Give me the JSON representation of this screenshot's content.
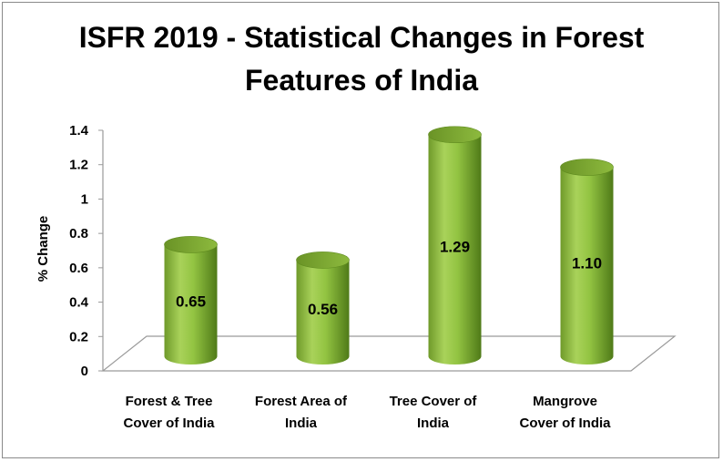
{
  "chart_data": {
    "type": "bar",
    "title": "ISFR 2019 - Statistical Changes in Forest Features of India",
    "title_lines": [
      "ISFR 2019 - Statistical Changes in Forest",
      "Features of India"
    ],
    "xlabel": "",
    "ylabel": "% Change",
    "ylim": [
      0,
      1.4
    ],
    "y_ticks": [
      "0",
      "0.2",
      "0.4",
      "0.6",
      "0.8",
      "1",
      "1.2",
      "1.4"
    ],
    "categories": [
      [
        "Forest & Tree",
        "Cover of India"
      ],
      [
        "Forest Area of",
        "India"
      ],
      [
        "Tree Cover of",
        "India"
      ],
      [
        "Mangrove",
        "Cover of India"
      ]
    ],
    "values": [
      0.65,
      0.56,
      1.29,
      1.1
    ],
    "data_labels": [
      "0.65",
      "0.56",
      "1.29",
      "1.10"
    ],
    "bar_color": "#8fbf3c",
    "legend": "none",
    "grid": false
  }
}
